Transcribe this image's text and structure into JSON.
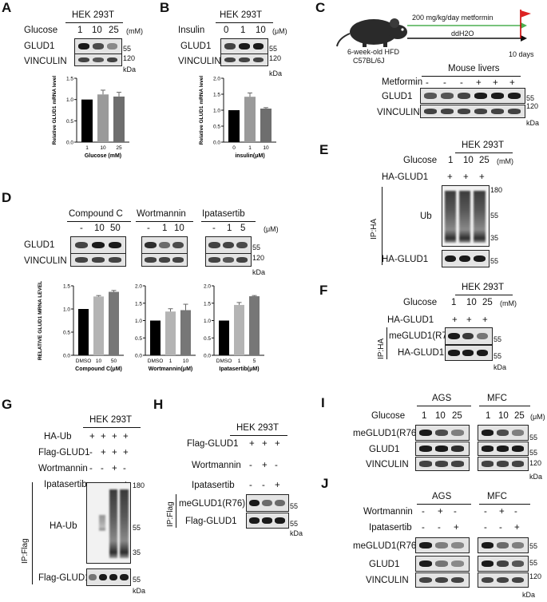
{
  "panels": {
    "A": {
      "label": "A",
      "cell": "HEK 293T",
      "cond": "Glucose",
      "conc": [
        "1",
        "10",
        "25"
      ],
      "unit": "(mM)",
      "rows": [
        "GLUD1",
        "VINCULIN"
      ],
      "mw": [
        "55",
        "120"
      ],
      "kda": "kDa"
    },
    "B": {
      "label": "B",
      "cell": "HEK 293T",
      "cond": "Insulin",
      "conc": [
        "0",
        "1",
        "10"
      ],
      "unit": "(μM)",
      "rows": [
        "GLUD1",
        "VINCULIN"
      ],
      "mw": [
        "55",
        "120"
      ],
      "kda": "kDa"
    },
    "C": {
      "label": "C",
      "dose": "200 mg/kg/day metformin",
      "ctrl": "ddH2O",
      "mouse": "6-week-old  HFD",
      "strain": "C57BL/6J",
      "duration": "10 days",
      "tissue": "Mouse livers",
      "cond": "Metformin",
      "signs": [
        "-",
        "-",
        "-",
        "+",
        "+",
        "+"
      ],
      "rows": [
        "GLUD1",
        "VINCULIN"
      ],
      "mw": [
        "55",
        "120"
      ],
      "kda": "kDa"
    },
    "D": {
      "label": "D",
      "groups": [
        "Compound C",
        "Wortmannin",
        "Ipatasertib"
      ],
      "c1": [
        "-",
        "10",
        "50"
      ],
      "c2": [
        "-",
        "1",
        "10"
      ],
      "c3": [
        "-",
        "1",
        "5"
      ],
      "unit": "(μM)",
      "rows": [
        "GLUD1",
        "VINCULIN"
      ],
      "mw": [
        "55",
        "120"
      ],
      "kda": "kDa"
    },
    "E": {
      "label": "E",
      "cell": "HEK 293T",
      "cond": "Glucose",
      "conc": [
        "1",
        "10",
        "25"
      ],
      "unit": "(mM)",
      "ha": "HA-GLUD1",
      "plus": [
        "+",
        "+",
        "+"
      ],
      "ip": "IP:HA",
      "ub": "Ub",
      "mw": [
        "180",
        "55",
        "35",
        "55"
      ],
      "kda": "kDa"
    },
    "F": {
      "label": "F",
      "cell": "HEK 293T",
      "cond": "Glucose",
      "conc": [
        "1",
        "10",
        "25"
      ],
      "unit": "(mM)",
      "ha": "HA-GLUD1",
      "plus": [
        "+",
        "+",
        "+"
      ],
      "ip": "IP:HA",
      "rows": [
        "meGLUD1(R76)",
        "HA-GLUD1"
      ],
      "mw": [
        "55",
        "55"
      ],
      "kda": "kDa"
    },
    "G": {
      "label": "G",
      "cell": "HEK 293T",
      "conds": [
        "HA-Ub",
        "Flag-GLUD1",
        "Wortmannin",
        "Ipatasertib"
      ],
      "s1": [
        "+",
        "+",
        "+",
        "+"
      ],
      "s2": [
        "-",
        "+",
        "+",
        "+"
      ],
      "s3": [
        "-",
        "-",
        "+",
        "-"
      ],
      "s4": [
        "-",
        "-",
        "-",
        "+"
      ],
      "ip": "IP:Flag",
      "rows": [
        "HA-Ub",
        "Flag-GLUD1"
      ],
      "mw": [
        "180",
        "55",
        "35",
        "55"
      ],
      "kda": "kDa"
    },
    "H": {
      "label": "H",
      "cell": "HEK 293T",
      "conds": [
        "Flag-GLUD1",
        "Wortmannin",
        "Ipatasertib"
      ],
      "s1": [
        "+",
        "+",
        "+"
      ],
      "s2": [
        "-",
        "+",
        "-"
      ],
      "s3": [
        "-",
        "-",
        "+"
      ],
      "ip": "IP:Flag",
      "rows": [
        "meGLUD1(R76)",
        "Flag-GLUD1"
      ],
      "mw": [
        "55",
        "55"
      ],
      "kda": "kDa"
    },
    "I": {
      "label": "I",
      "cells": [
        "AGS",
        "MFC"
      ],
      "cond": "Glucose",
      "conc": [
        "1",
        "10",
        "25"
      ],
      "unit": "(μM)",
      "rows": [
        "meGLUD1(R76)",
        "GLUD1",
        "VINCULIN"
      ],
      "mw": [
        "55",
        "55",
        "120"
      ],
      "kda": "kDa"
    },
    "J": {
      "label": "J",
      "cells": [
        "AGS",
        "MFC"
      ],
      "conds": [
        "Wortmannin",
        "Ipatasertib"
      ],
      "w": [
        "-",
        "+",
        "-"
      ],
      "i": [
        "-",
        "-",
        "+"
      ],
      "rows": [
        "meGLUD1(R76)",
        "GLUD1",
        "VINCULIN"
      ],
      "mw": [
        "55",
        "55",
        "120"
      ],
      "kda": "kDa"
    }
  },
  "chart_data": [
    {
      "type": "bar",
      "id": "A-mRNA",
      "categories": [
        "1",
        "10",
        "25"
      ],
      "values": [
        1.0,
        1.12,
        1.07
      ],
      "errors": [
        0,
        0.1,
        0.1
      ],
      "colors": [
        "#000000",
        "#9a9a9a",
        "#6e6e6e"
      ],
      "ylim": [
        0,
        1.5
      ],
      "yticks": [
        "0.0",
        "0.5",
        "1.0",
        "1.5"
      ],
      "ylabel": "Relative GLUD1 mRNA level",
      "xlabel": "Glucose (mM)"
    },
    {
      "type": "bar",
      "id": "B-mRNA",
      "categories": [
        "0",
        "1",
        "10"
      ],
      "values": [
        1.0,
        1.42,
        1.05
      ],
      "errors": [
        0,
        0.12,
        0.03
      ],
      "colors": [
        "#000000",
        "#9a9a9a",
        "#6e6e6e"
      ],
      "ylim": [
        0,
        2.0
      ],
      "yticks": [
        "0.0",
        "0.5",
        "1.0",
        "1.5",
        "2.0"
      ],
      "ylabel": "Relative GLUD1 mRNA level",
      "xlabel": "insulin(μM)"
    },
    {
      "type": "bar",
      "id": "D-cc",
      "categories": [
        "DMSO",
        "10",
        "50"
      ],
      "values": [
        1.0,
        1.27,
        1.37
      ],
      "errors": [
        0,
        0.02,
        0.03
      ],
      "colors": [
        "#000000",
        "#b4b4b4",
        "#777777"
      ],
      "ylim": [
        0,
        1.5
      ],
      "yticks": [
        "0.0",
        "0.5",
        "1.0",
        "1.5"
      ],
      "ylabel": "RELATIVE GLUD1 MRNA LEVEL",
      "xlabel": "Compound C(μM)"
    },
    {
      "type": "bar",
      "id": "D-wm",
      "categories": [
        "DMSO",
        "1",
        "10"
      ],
      "values": [
        1.0,
        1.26,
        1.3
      ],
      "errors": [
        0,
        0.08,
        0.17
      ],
      "colors": [
        "#000000",
        "#b4b4b4",
        "#777777"
      ],
      "ylim": [
        0,
        2.0
      ],
      "yticks": [
        "0.0",
        "0.5",
        "1.0",
        "1.5",
        "2.0"
      ],
      "ylabel": "",
      "xlabel": "Wortmannin(μM)"
    },
    {
      "type": "bar",
      "id": "D-ip",
      "categories": [
        "DMSO",
        "1",
        "5"
      ],
      "values": [
        1.0,
        1.45,
        1.7
      ],
      "errors": [
        0,
        0.07,
        0.02
      ],
      "colors": [
        "#000000",
        "#b4b4b4",
        "#777777"
      ],
      "ylim": [
        0,
        2.0
      ],
      "yticks": [
        "0.0",
        "0.5",
        "1.0",
        "1.5",
        "2.0"
      ],
      "ylabel": "",
      "xlabel": "Ipatasertib(μM)"
    }
  ]
}
